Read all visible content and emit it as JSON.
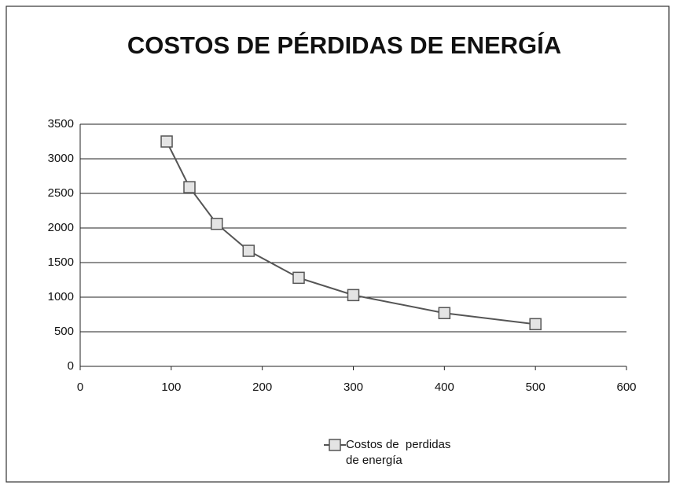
{
  "chart_data": {
    "type": "line",
    "title": "COSTOS DE PÉRDIDAS DE ENERGÍA",
    "x": [
      95,
      120,
      150,
      185,
      240,
      300,
      400,
      500
    ],
    "series": [
      {
        "name": "Costos de  perdidas de energía",
        "color": "#555555",
        "values": [
          3250,
          2590,
          2060,
          1670,
          1280,
          1030,
          770,
          610
        ]
      }
    ],
    "xlim": [
      0,
      600
    ],
    "xticks": [
      0,
      100,
      200,
      300,
      400,
      500,
      600
    ],
    "ylim": [
      0,
      3500
    ],
    "yticks": [
      0,
      500,
      1000,
      1500,
      2000,
      2500,
      3000,
      3500
    ],
    "grid": true,
    "legend": "bottom"
  }
}
